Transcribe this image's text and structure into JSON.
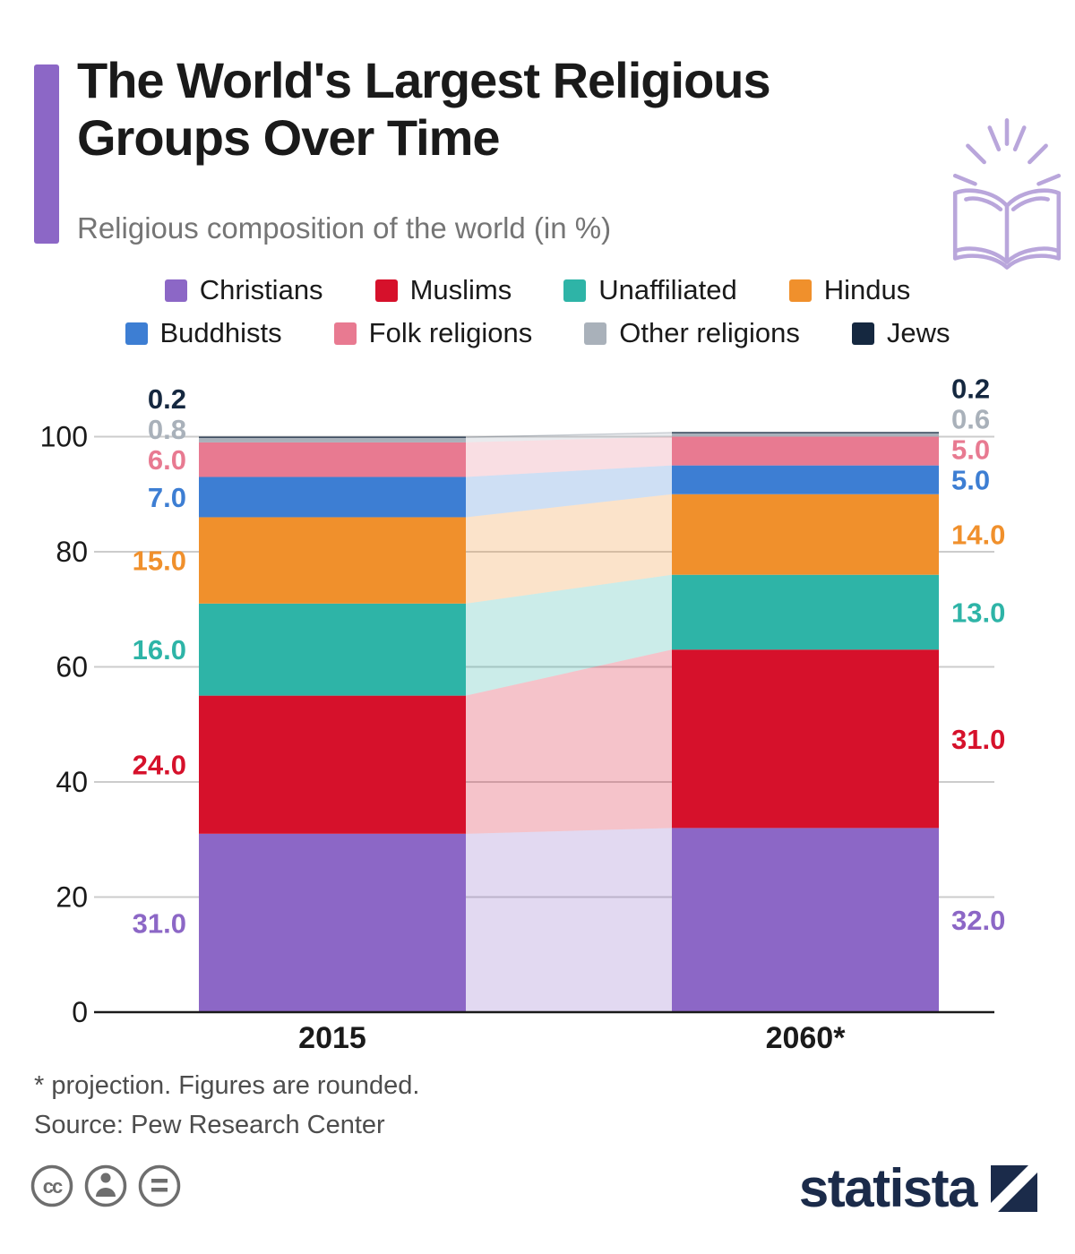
{
  "header": {
    "title_line1": "The World's Largest Religious",
    "title_line2": "Groups Over Time",
    "subtitle": "Religious composition of the world (in %)"
  },
  "chart_data": {
    "type": "stacked-bar-flow",
    "title": "The World's Largest Religious Groups Over Time",
    "subtitle": "Religious composition of the world (in %)",
    "unit": "%",
    "categories": [
      "2015",
      "2060*"
    ],
    "series": [
      {
        "name": "Christians",
        "color": "#8C67C6",
        "values": [
          31.0,
          32.0
        ]
      },
      {
        "name": "Muslims",
        "color": "#D6112B",
        "values": [
          24.0,
          31.0
        ]
      },
      {
        "name": "Unaffiliated",
        "color": "#2EB4A7",
        "values": [
          16.0,
          13.0
        ]
      },
      {
        "name": "Hindus",
        "color": "#F0902C",
        "values": [
          15.0,
          14.0
        ]
      },
      {
        "name": "Buddhists",
        "color": "#3D7ED3",
        "values": [
          7.0,
          5.0
        ]
      },
      {
        "name": "Folk religions",
        "color": "#E87A91",
        "values": [
          6.0,
          5.0
        ]
      },
      {
        "name": "Other religions",
        "color": "#A9B1BA",
        "values": [
          0.8,
          0.6
        ]
      },
      {
        "name": "Jews",
        "color": "#152840",
        "values": [
          0.2,
          0.2
        ]
      }
    ],
    "yticks": [
      0,
      20,
      40,
      60,
      80,
      100
    ],
    "ylim": [
      0,
      100
    ],
    "grid": true,
    "legend_position": "top",
    "flow_opacity": 0.25
  },
  "footer": {
    "note": "* projection. Figures are rounded.",
    "source": "Source: Pew Research Center"
  },
  "branding": {
    "logo_text": "statista"
  },
  "colors": {
    "accent_bar": "#8C67C6",
    "title": "#1A1A1A",
    "subtitle": "#757575",
    "gridline": "#CCCCCC",
    "axis_line": "#1A1A1A",
    "logo_navy": "#1B2B4A",
    "book_icon": "#B9A6DB",
    "license_gray": "#6E6E6E",
    "background": "#FFFFFF"
  }
}
